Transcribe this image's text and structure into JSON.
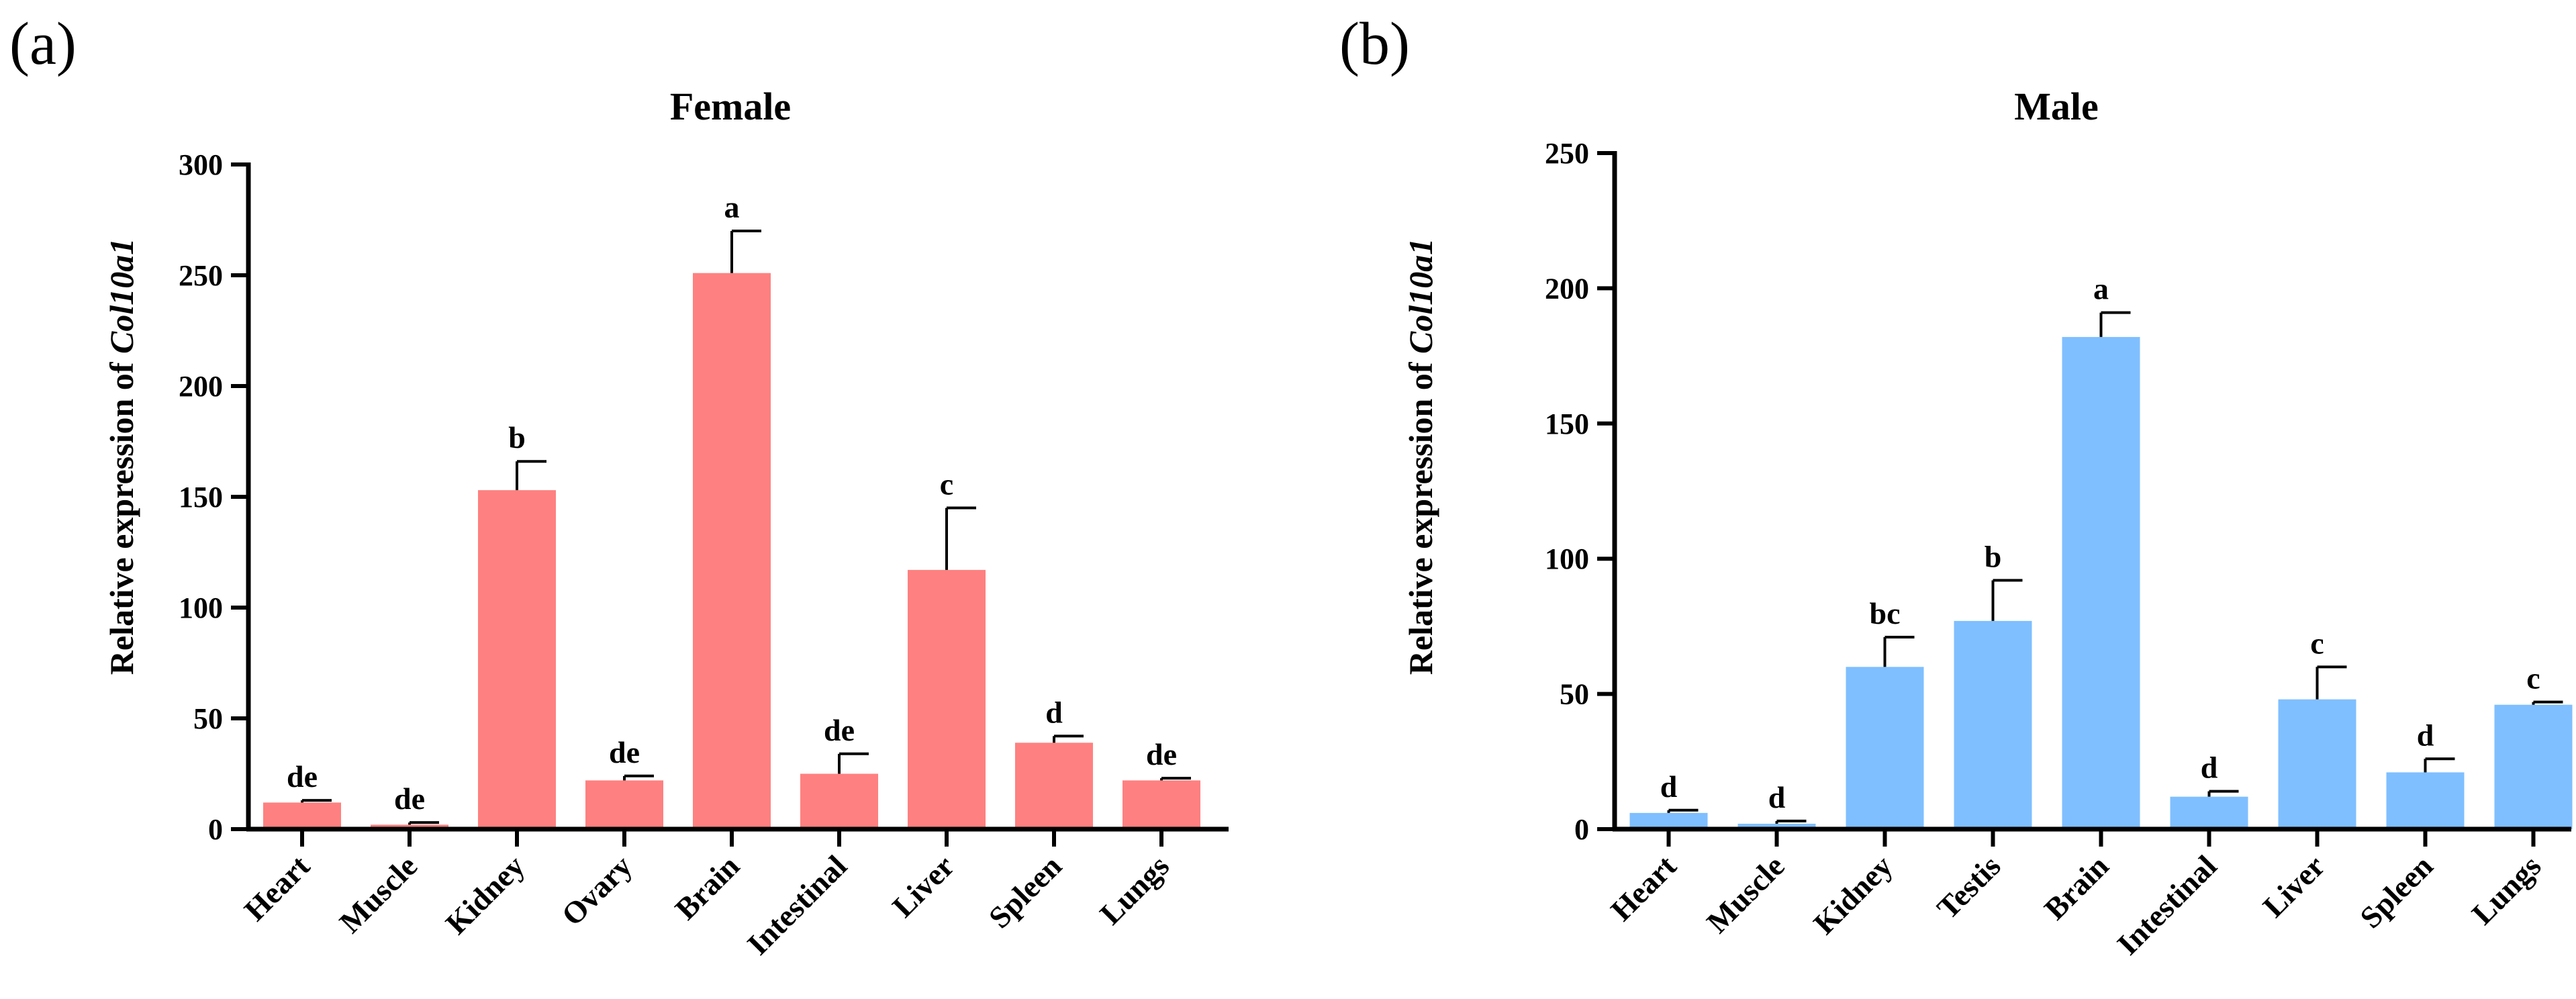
{
  "chart_data": [
    {
      "panel_label": "(a)",
      "type": "bar",
      "title": "Female",
      "ylabel_prefix": "Relative expression of ",
      "ylabel_gene": "Col10a1",
      "xlabel": "",
      "ylim": [
        0,
        300
      ],
      "yticks": [
        0,
        50,
        100,
        150,
        200,
        250,
        300
      ],
      "bar_color": "#ff8080",
      "categories": [
        "Heart",
        "Muscle",
        "Kidney",
        "Ovary",
        "Brain",
        "Intestinal",
        "Liver",
        "Spleen",
        "Lungs"
      ],
      "values": [
        12,
        2,
        153,
        22,
        251,
        25,
        117,
        39,
        22
      ],
      "errors": [
        1,
        1,
        13,
        2,
        19,
        9,
        28,
        3,
        1
      ],
      "significance": [
        "de",
        "de",
        "b",
        "de",
        "a",
        "de",
        "c",
        "d",
        "de"
      ]
    },
    {
      "panel_label": "(b)",
      "type": "bar",
      "title": "Male",
      "ylabel_prefix": "Relative expression of ",
      "ylabel_gene": "Col10a1",
      "xlabel": "",
      "ylim": [
        0,
        250
      ],
      "yticks": [
        0,
        50,
        100,
        150,
        200,
        250
      ],
      "bar_color": "#7fbfff",
      "categories": [
        "Heart",
        "Muscle",
        "Kidney",
        "Testis",
        "Brain",
        "Intestinal",
        "Liver",
        "Spleen",
        "Lungs"
      ],
      "values": [
        6,
        2,
        60,
        77,
        182,
        12,
        48,
        21,
        46
      ],
      "errors": [
        1,
        1,
        11,
        15,
        9,
        2,
        12,
        5,
        1
      ],
      "significance": [
        "d",
        "d",
        "bc",
        "b",
        "a",
        "d",
        "c",
        "d",
        "c"
      ]
    }
  ]
}
